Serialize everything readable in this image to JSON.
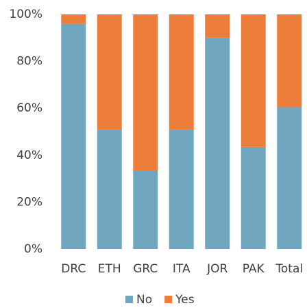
{
  "chart_data": {
    "type": "stacked_bar",
    "categories": [
      "DRC",
      "ETH",
      "GRC",
      "ITA",
      "JOR",
      "PAK",
      "Total"
    ],
    "series": [
      {
        "name": "No",
        "color": "#71a6bf",
        "values": [
          96,
          51,
          33.5,
          51,
          90,
          43.5,
          60.5
        ]
      },
      {
        "name": "Yes",
        "color": "#ed7d3a",
        "values": [
          4,
          49,
          66.5,
          49,
          10,
          56.5,
          39.5
        ]
      }
    ],
    "ylim": [
      0,
      100
    ],
    "yticks": [
      {
        "value": 0,
        "label": "0%"
      },
      {
        "value": 20,
        "label": "20%"
      },
      {
        "value": 40,
        "label": "40%"
      },
      {
        "value": 60,
        "label": "60%"
      },
      {
        "value": 80,
        "label": "80%"
      },
      {
        "value": 100,
        "label": "100%"
      }
    ],
    "grid": false,
    "legend": "bottom"
  }
}
